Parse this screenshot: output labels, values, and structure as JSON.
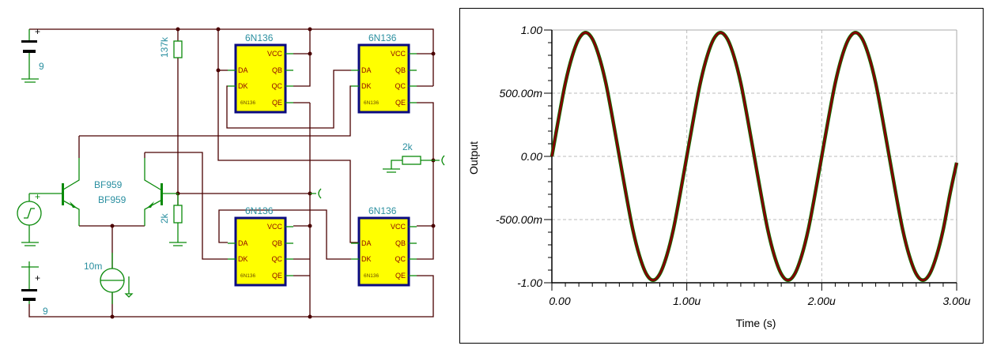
{
  "schematic": {
    "battery_top_value": "9",
    "battery_bottom_value": "9",
    "plus": "+",
    "r_bias_top": "137k",
    "r_bias_bottom": "2k",
    "r_load": "2k",
    "transistor_left": "BF959",
    "transistor_right": "BF959",
    "current_source": "10m",
    "chips": [
      {
        "title": "6N136",
        "part": "6N136",
        "pins_left": [
          "DA",
          "DK"
        ],
        "pins_right": [
          "VCC",
          "QB",
          "QC",
          "QE"
        ]
      },
      {
        "title": "6N136",
        "part": "6N136",
        "pins_left": [
          "DA",
          "DK"
        ],
        "pins_right": [
          "VCC",
          "QB",
          "QC",
          "QE"
        ]
      },
      {
        "title": "6N136",
        "part": "6N136",
        "pins_left": [
          "DA",
          "DK"
        ],
        "pins_right": [
          "VCC",
          "QB",
          "QC",
          "QE"
        ]
      },
      {
        "title": "6N136",
        "part": "6N136",
        "pins_left": [
          "DA",
          "DK"
        ],
        "pins_right": [
          "VCC",
          "QB",
          "QC",
          "QE"
        ]
      }
    ],
    "colors": {
      "wire": "#4a0000",
      "component": "#0a8a0a",
      "chip_fill": "#ffff00",
      "chip_border": "#0a0a80",
      "label": "#2a8fa0",
      "pin_label": "#8b0000"
    }
  },
  "chart_data": {
    "type": "line",
    "xlabel": "Time (s)",
    "ylabel": "Output",
    "xlim": [
      0,
      3e-06
    ],
    "ylim": [
      -1,
      1
    ],
    "x_ticks": [
      "0.00",
      "1.00u",
      "2.00u",
      "3.00u"
    ],
    "y_ticks": [
      "1.00",
      "500.00m",
      "0.00",
      "-500.00m",
      "-1.00"
    ],
    "grid": true,
    "x_step_us": 0.05,
    "series": [
      {
        "color": "#008000",
        "values": [
          0,
          0.3,
          0.58,
          0.79,
          0.93,
          0.98,
          0.93,
          0.79,
          0.58,
          0.3,
          0,
          -0.3,
          -0.58,
          -0.79,
          -0.93,
          -0.98,
          -0.93,
          -0.79,
          -0.58,
          -0.3,
          0,
          0.3,
          0.58,
          0.79,
          0.93,
          0.98,
          0.93,
          0.79,
          0.58,
          0.3,
          0,
          -0.3,
          -0.58,
          -0.79,
          -0.93,
          -0.98,
          -0.93,
          -0.79,
          -0.58,
          -0.3,
          0,
          0.3,
          0.58,
          0.79,
          0.93,
          0.98,
          0.93,
          0.79,
          0.58,
          0.3,
          0,
          -0.3,
          -0.58,
          -0.79,
          -0.93,
          -0.98,
          -0.93,
          -0.79,
          -0.58,
          -0.3,
          -0.05
        ]
      },
      {
        "color": "#800000",
        "values": [
          0,
          0.3,
          0.58,
          0.79,
          0.93,
          0.98,
          0.93,
          0.79,
          0.58,
          0.3,
          0,
          -0.3,
          -0.58,
          -0.79,
          -0.93,
          -0.98,
          -0.93,
          -0.79,
          -0.58,
          -0.3,
          0,
          0.3,
          0.58,
          0.79,
          0.93,
          0.98,
          0.93,
          0.79,
          0.58,
          0.3,
          0,
          -0.3,
          -0.58,
          -0.79,
          -0.93,
          -0.98,
          -0.93,
          -0.79,
          -0.58,
          -0.3,
          0,
          0.3,
          0.58,
          0.79,
          0.93,
          0.98,
          0.93,
          0.79,
          0.58,
          0.3,
          0,
          -0.3,
          -0.58,
          -0.79,
          -0.93,
          -0.98,
          -0.93,
          -0.79,
          -0.58,
          -0.3,
          -0.05
        ]
      }
    ]
  }
}
